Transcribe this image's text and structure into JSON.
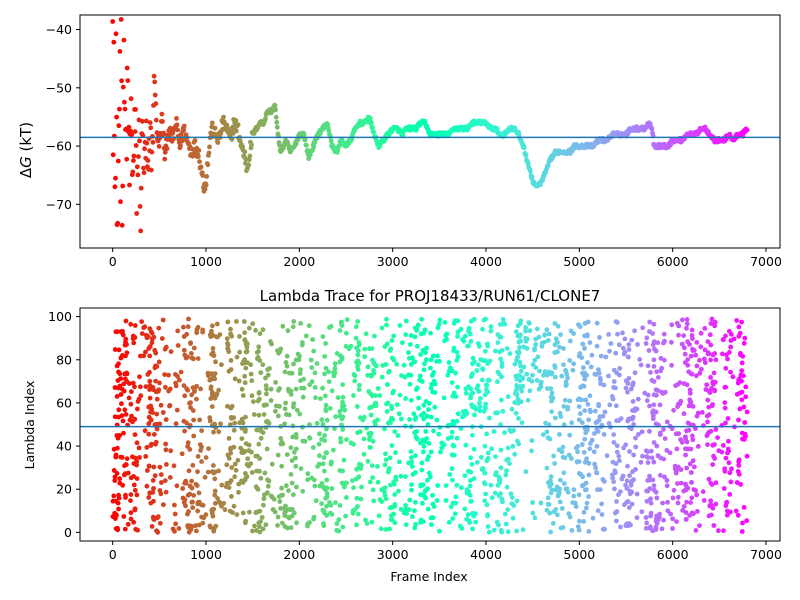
{
  "chart_data": [
    {
      "type": "scatter",
      "title": "",
      "xlabel": "",
      "ylabel": "ΔG (kT)",
      "ylabel_prefix": "Δ",
      "ylabel_var": "G",
      "ylabel_unit": " (kT)",
      "xlim": [
        -350,
        7150
      ],
      "ylim": [
        -77.5,
        -37.5
      ],
      "xticks": [
        0,
        1000,
        2000,
        3000,
        4000,
        5000,
        6000,
        7000
      ],
      "yticks": [
        -70,
        -60,
        -50,
        -40
      ],
      "hline": -58.5,
      "hline_color": "#1f77b4",
      "colormap": "rainbow (red at frame 0 to violet at last frame)",
      "trace_envelope": [
        [
          0,
          -40
        ],
        [
          20,
          -60
        ],
        [
          40,
          -44
        ],
        [
          60,
          -62
        ],
        [
          80,
          -46
        ],
        [
          100,
          -58
        ],
        [
          120,
          -50
        ],
        [
          140,
          -61
        ],
        [
          160,
          -52
        ],
        [
          180,
          -64
        ],
        [
          200,
          -55
        ],
        [
          220,
          -66
        ],
        [
          240,
          -56
        ],
        [
          260,
          -68
        ],
        [
          280,
          -58
        ],
        [
          300,
          -70
        ],
        [
          320,
          -57
        ],
        [
          340,
          -65
        ],
        [
          360,
          -59
        ],
        [
          380,
          -67
        ],
        [
          400,
          -58
        ],
        [
          420,
          -62
        ],
        [
          450,
          -48
        ],
        [
          470,
          -57
        ],
        [
          500,
          -60
        ],
        [
          530,
          -55
        ],
        [
          560,
          -62
        ],
        [
          600,
          -57
        ],
        [
          640,
          -59
        ],
        [
          680,
          -56
        ],
        [
          720,
          -60
        ],
        [
          760,
          -57
        ],
        [
          800,
          -59
        ],
        [
          840,
          -61
        ],
        [
          880,
          -60
        ],
        [
          920,
          -61
        ],
        [
          950,
          -64
        ],
        [
          980,
          -67
        ],
        [
          1000,
          -66
        ],
        [
          1030,
          -61
        ],
        [
          1060,
          -57
        ],
        [
          1100,
          -58
        ],
        [
          1140,
          -59
        ],
        [
          1180,
          -56
        ],
        [
          1220,
          -57
        ],
        [
          1260,
          -59
        ],
        [
          1300,
          -56
        ],
        [
          1340,
          -57
        ],
        [
          1380,
          -60
        ],
        [
          1420,
          -62
        ],
        [
          1440,
          -64
        ],
        [
          1470,
          -61
        ],
        [
          1500,
          -58
        ],
        [
          1540,
          -57
        ],
        [
          1580,
          -56
        ],
        [
          1620,
          -56
        ],
        [
          1660,
          -54
        ],
        [
          1700,
          -54
        ],
        [
          1740,
          -53
        ],
        [
          1770,
          -58
        ],
        [
          1800,
          -61
        ],
        [
          1830,
          -60
        ],
        [
          1860,
          -59
        ],
        [
          1900,
          -61
        ],
        [
          1950,
          -60
        ],
        [
          2000,
          -58
        ],
        [
          2050,
          -58
        ],
        [
          2100,
          -62
        ],
        [
          2150,
          -60
        ],
        [
          2200,
          -58
        ],
        [
          2250,
          -57
        ],
        [
          2300,
          -56
        ],
        [
          2350,
          -60
        ],
        [
          2400,
          -61
        ],
        [
          2450,
          -59
        ],
        [
          2500,
          -60
        ],
        [
          2550,
          -59
        ],
        [
          2600,
          -57
        ],
        [
          2650,
          -56
        ],
        [
          2700,
          -56
        ],
        [
          2750,
          -55
        ],
        [
          2800,
          -58
        ],
        [
          2850,
          -60
        ],
        [
          2900,
          -59
        ],
        [
          2950,
          -58
        ],
        [
          3000,
          -57
        ],
        [
          3050,
          -57
        ],
        [
          3100,
          -58
        ],
        [
          3150,
          -57
        ],
        [
          3200,
          -57
        ],
        [
          3250,
          -57
        ],
        [
          3300,
          -56
        ],
        [
          3350,
          -56
        ],
        [
          3400,
          -58
        ],
        [
          3450,
          -58
        ],
        [
          3500,
          -58
        ],
        [
          3550,
          -58
        ],
        [
          3600,
          -58
        ],
        [
          3650,
          -57
        ],
        [
          3700,
          -57
        ],
        [
          3750,
          -57
        ],
        [
          3800,
          -57
        ],
        [
          3850,
          -56
        ],
        [
          3900,
          -56
        ],
        [
          3950,
          -56
        ],
        [
          4000,
          -56
        ],
        [
          4050,
          -57
        ],
        [
          4100,
          -57
        ],
        [
          4150,
          -58
        ],
        [
          4200,
          -58
        ],
        [
          4250,
          -57
        ],
        [
          4300,
          -57
        ],
        [
          4350,
          -58
        ],
        [
          4400,
          -60
        ],
        [
          4450,
          -63
        ],
        [
          4500,
          -66
        ],
        [
          4550,
          -67
        ],
        [
          4600,
          -66
        ],
        [
          4650,
          -64
        ],
        [
          4700,
          -62
        ],
        [
          4750,
          -61
        ],
        [
          4800,
          -61
        ],
        [
          4850,
          -61
        ],
        [
          4900,
          -61
        ],
        [
          4950,
          -60
        ],
        [
          5000,
          -60
        ],
        [
          5050,
          -60
        ],
        [
          5100,
          -60
        ],
        [
          5150,
          -60
        ],
        [
          5200,
          -59
        ],
        [
          5250,
          -59
        ],
        [
          5300,
          -59
        ],
        [
          5350,
          -58
        ],
        [
          5400,
          -58
        ],
        [
          5450,
          -58
        ],
        [
          5500,
          -58
        ],
        [
          5550,
          -57
        ],
        [
          5600,
          -57
        ],
        [
          5650,
          -57
        ],
        [
          5700,
          -57
        ],
        [
          5750,
          -56
        ],
        [
          5780,
          -57
        ],
        [
          5800,
          -60
        ],
        [
          5850,
          -60
        ],
        [
          5900,
          -60
        ],
        [
          5950,
          -60
        ],
        [
          6000,
          -59
        ],
        [
          6050,
          -59
        ],
        [
          6100,
          -59
        ],
        [
          6150,
          -58
        ],
        [
          6200,
          -58
        ],
        [
          6250,
          -58
        ],
        [
          6300,
          -57
        ],
        [
          6350,
          -57
        ],
        [
          6400,
          -58
        ],
        [
          6450,
          -59
        ],
        [
          6500,
          -59
        ],
        [
          6550,
          -59
        ],
        [
          6600,
          -58
        ],
        [
          6650,
          -59
        ],
        [
          6700,
          -58
        ],
        [
          6750,
          -58
        ],
        [
          6800,
          -57
        ]
      ]
    },
    {
      "type": "scatter",
      "title": "Lambda Trace for PROJ18433/RUN61/CLONE7",
      "xlabel": "Frame Index",
      "ylabel": "Lambda Index",
      "xlim": [
        -350,
        7150
      ],
      "ylim": [
        -4,
        104
      ],
      "xticks": [
        0,
        1000,
        2000,
        3000,
        4000,
        5000,
        6000,
        7000
      ],
      "yticks": [
        0,
        20,
        40,
        60,
        80,
        100
      ],
      "hline": 49,
      "hline_color": "#1f77b4",
      "colormap": "rainbow (red at frame 0 to violet at last frame)",
      "frame_range": [
        0,
        6800
      ],
      "lambda_range": [
        0,
        99
      ],
      "dense_high_band": {
        "x": [
          4350,
          4650
        ],
        "lambda": [
          65,
          99
        ]
      }
    }
  ]
}
